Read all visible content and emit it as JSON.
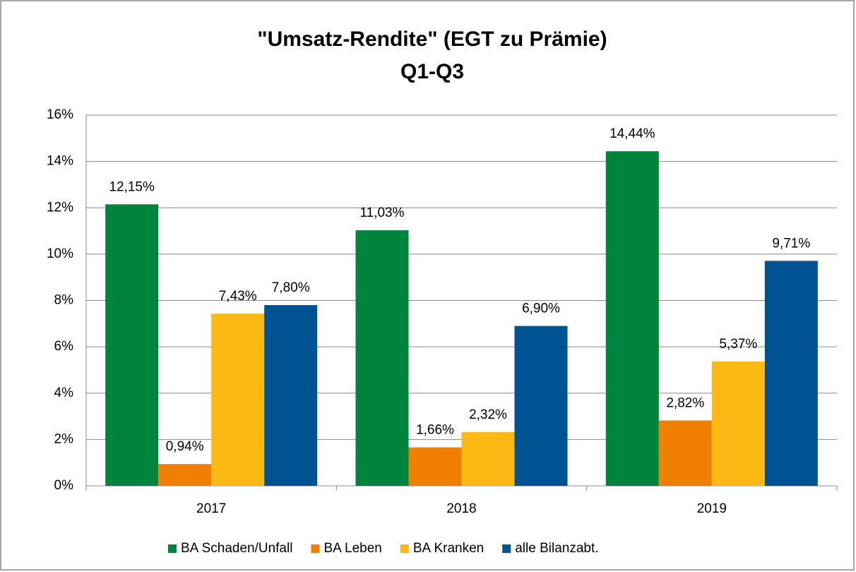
{
  "chart_data": {
    "type": "bar",
    "title": "\"Umsatz-Rendite\" (EGT zu Prämie)",
    "subtitle": "Q1-Q3",
    "categories": [
      "2017",
      "2018",
      "2019"
    ],
    "series": [
      {
        "name": "BA Schaden/Unfall",
        "color": "#00843d",
        "values": [
          12.15,
          11.03,
          14.44
        ],
        "value_labels": [
          "12,15%",
          "11,03%",
          "14,44%"
        ]
      },
      {
        "name": "BA Leben",
        "color": "#f07f00",
        "values": [
          0.94,
          1.66,
          2.82
        ],
        "value_labels": [
          "0,94%",
          "1,66%",
          "2,82%"
        ]
      },
      {
        "name": "BA Kranken",
        "color": "#fdb913",
        "values": [
          7.43,
          2.32,
          5.37
        ],
        "value_labels": [
          "7,43%",
          "2,32%",
          "5,37%"
        ]
      },
      {
        "name": "alle Bilanzabt.",
        "color": "#005293",
        "values": [
          7.8,
          6.9,
          9.71
        ],
        "value_labels": [
          "7,80%",
          "6,90%",
          "9,71%"
        ]
      }
    ],
    "ylim": [
      0,
      16
    ],
    "yticks": [
      {
        "value": 0,
        "label": "0%"
      },
      {
        "value": 2,
        "label": "2%"
      },
      {
        "value": 4,
        "label": "4%"
      },
      {
        "value": 6,
        "label": "6%"
      },
      {
        "value": 8,
        "label": "8%"
      },
      {
        "value": 10,
        "label": "10%"
      },
      {
        "value": 12,
        "label": "12%"
      },
      {
        "value": 14,
        "label": "14%"
      },
      {
        "value": 16,
        "label": "16%"
      }
    ],
    "grid": true,
    "legend": "bottom"
  }
}
